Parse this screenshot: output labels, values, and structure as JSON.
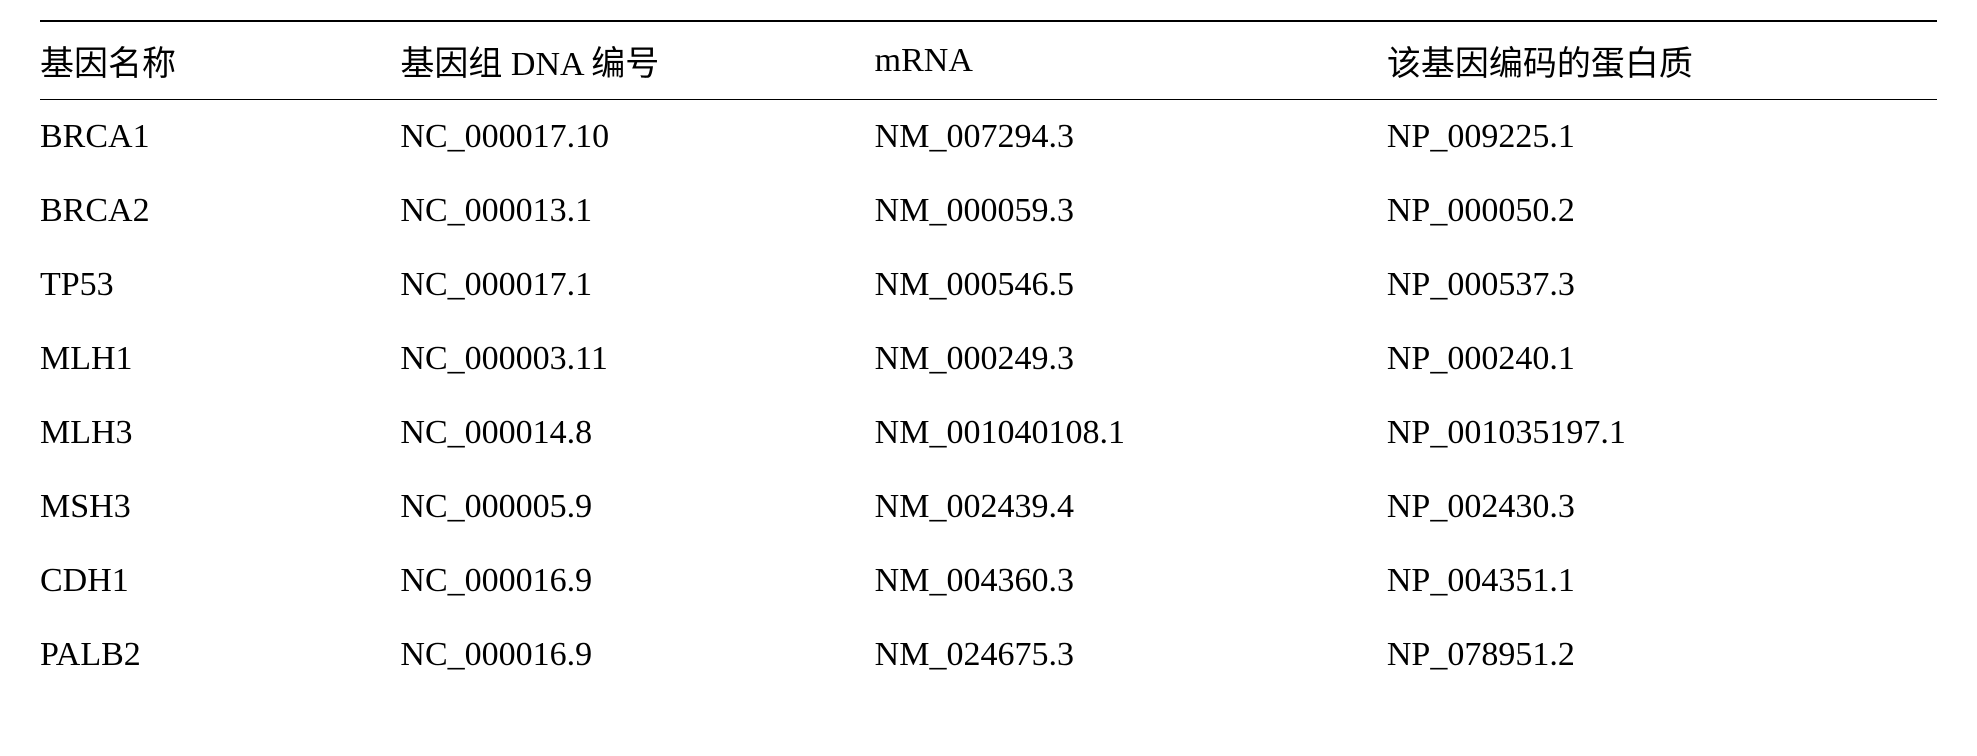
{
  "table": {
    "columns": [
      "基因名称",
      "基因组 DNA 编号",
      "mRNA",
      "该基因编码的蛋白质"
    ],
    "rows": [
      [
        "BRCA1",
        "NC_000017.10",
        "NM_007294.3",
        "NP_009225.1"
      ],
      [
        "BRCA2",
        "NC_000013.1",
        "NM_000059.3",
        "NP_000050.2"
      ],
      [
        "TP53",
        "NC_000017.1",
        "NM_000546.5",
        "NP_000537.3"
      ],
      [
        "MLH1",
        "NC_000003.11",
        "NM_000249.3",
        "NP_000240.1"
      ],
      [
        "MLH3",
        "NC_000014.8",
        "NM_001040108.1",
        "NP_001035197.1"
      ],
      [
        "MSH3",
        "NC_000005.9",
        "NM_002439.4",
        "NP_002430.3"
      ],
      [
        "CDH1",
        "NC_000016.9",
        "NM_004360.3",
        "NP_004351.1"
      ],
      [
        "PALB2",
        "NC_000016.9",
        "NM_024675.3",
        "NP_078951.2"
      ]
    ],
    "style": {
      "header_border_top_width": 2,
      "header_border_bottom_width": 1.5,
      "border_color": "#000000",
      "font_size": 34,
      "text_color": "#000000",
      "background_color": "#ffffff",
      "column_widths_percent": [
        19,
        25,
        27,
        29
      ]
    }
  }
}
